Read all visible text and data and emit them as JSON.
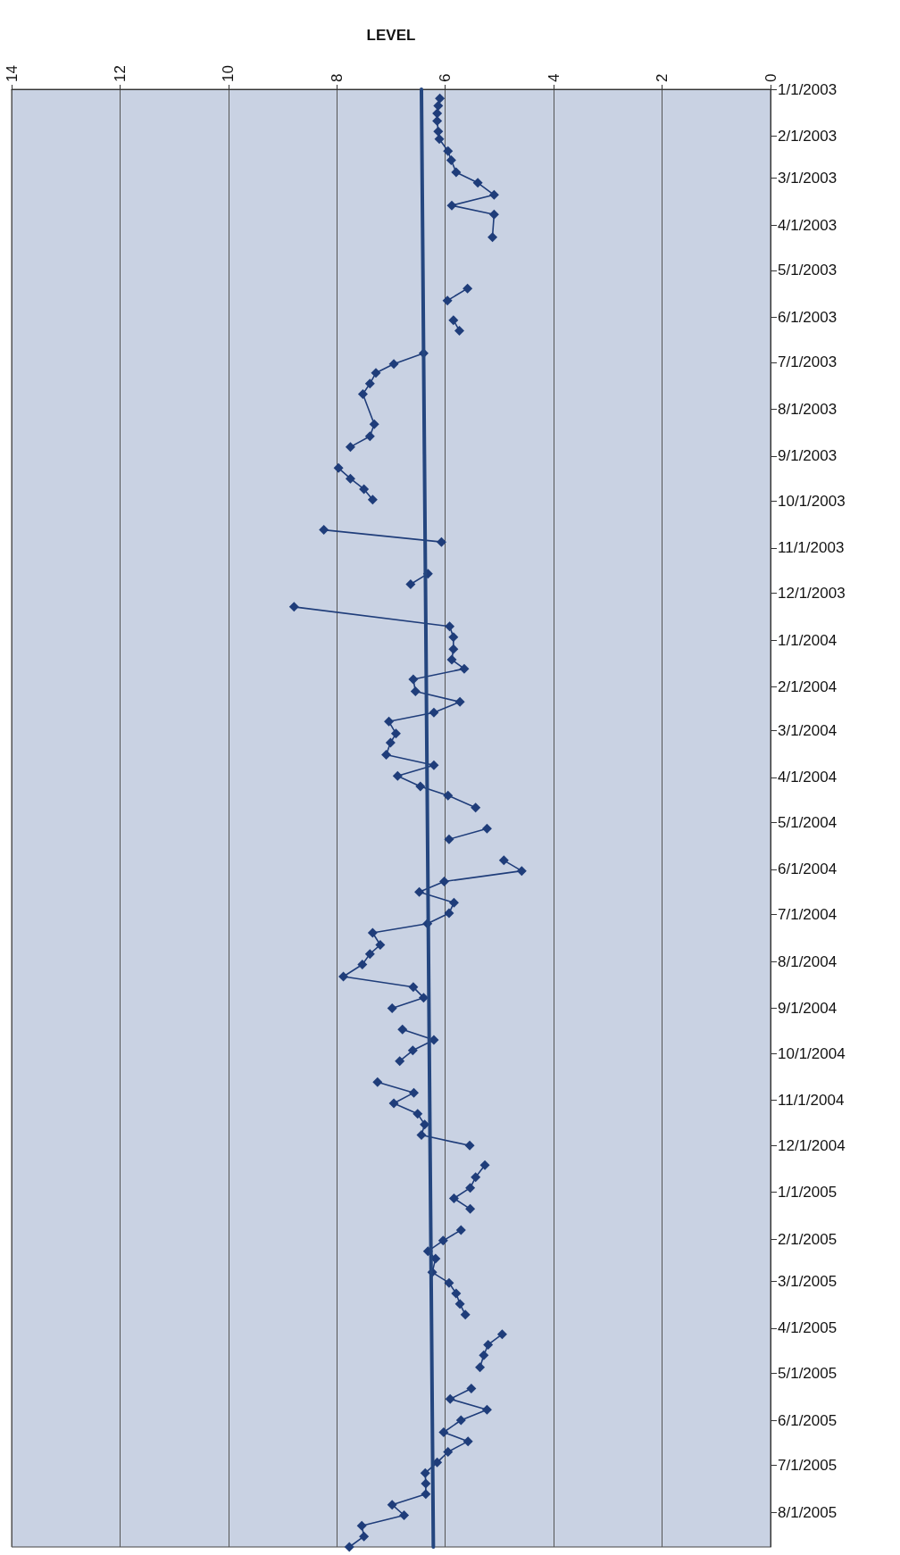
{
  "chart_data": {
    "type": "line",
    "orientation": "horizontal",
    "xlabel": "LEVEL",
    "xlim": [
      14,
      0
    ],
    "xticks": [
      14,
      12,
      10,
      8,
      6,
      4,
      2,
      0
    ],
    "ylim": [
      "2005-08-24",
      "2003-01-01"
    ],
    "yticks": [
      {
        "value": "2003-01-01",
        "label": "1/1/2003"
      },
      {
        "value": "2003-02-01",
        "label": "2/1/2003"
      },
      {
        "value": "2003-03-01",
        "label": "3/1/2003"
      },
      {
        "value": "2003-04-01",
        "label": "4/1/2003"
      },
      {
        "value": "2003-05-01",
        "label": "5/1/2003"
      },
      {
        "value": "2003-06-01",
        "label": "6/1/2003"
      },
      {
        "value": "2003-07-01",
        "label": "7/1/2003"
      },
      {
        "value": "2003-08-01",
        "label": "8/1/2003"
      },
      {
        "value": "2003-09-01",
        "label": "9/1/2003"
      },
      {
        "value": "2003-10-01",
        "label": "10/1/2003"
      },
      {
        "value": "2003-11-01",
        "label": "11/1/2003"
      },
      {
        "value": "2003-12-01",
        "label": "12/1/2003"
      },
      {
        "value": "2004-01-01",
        "label": "1/1/2004"
      },
      {
        "value": "2004-02-01",
        "label": "2/1/2004"
      },
      {
        "value": "2004-03-01",
        "label": "3/1/2004"
      },
      {
        "value": "2004-04-01",
        "label": "4/1/2004"
      },
      {
        "value": "2004-05-01",
        "label": "5/1/2004"
      },
      {
        "value": "2004-06-01",
        "label": "6/1/2004"
      },
      {
        "value": "2004-07-01",
        "label": "7/1/2004"
      },
      {
        "value": "2004-08-01",
        "label": "8/1/2004"
      },
      {
        "value": "2004-09-01",
        "label": "9/1/2004"
      },
      {
        "value": "2004-10-01",
        "label": "10/1/2004"
      },
      {
        "value": "2004-11-01",
        "label": "11/1/2004"
      },
      {
        "value": "2004-12-01",
        "label": "12/1/2004"
      },
      {
        "value": "2005-01-01",
        "label": "1/1/2005"
      },
      {
        "value": "2005-02-01",
        "label": "2/1/2005"
      },
      {
        "value": "2005-03-01",
        "label": "3/1/2005"
      },
      {
        "value": "2005-04-01",
        "label": "4/1/2005"
      },
      {
        "value": "2005-05-01",
        "label": "5/1/2005"
      },
      {
        "value": "2005-06-01",
        "label": "6/1/2005"
      },
      {
        "value": "2005-07-01",
        "label": "7/1/2005"
      },
      {
        "value": "2005-08-01",
        "label": "8/1/2005"
      }
    ],
    "grid": "x",
    "marker": "diamond",
    "line_style": "solid",
    "series": [
      {
        "color": "#1f3d7a",
        "x": [
          "2003-01-07",
          "2003-01-12",
          "2003-01-17",
          "2003-01-22",
          "2003-01-29",
          "2003-02-03",
          "2003-02-11",
          "2003-02-17",
          "2003-02-25",
          "2003-03-04",
          "2003-03-12",
          "2003-03-19",
          "2003-03-25",
          "2003-04-09",
          "2003-04-25",
          "2003-05-13",
          "2003-05-21",
          "2003-05-27",
          "2003-06-03",
          "2003-06-10",
          "2003-06-17",
          "2003-06-25",
          "2003-07-02",
          "2003-07-08",
          "2003-07-15",
          "2003-07-22",
          "2003-08-11",
          "2003-08-19",
          "2003-08-26",
          "2003-09-02",
          "2003-09-09",
          "2003-09-16",
          "2003-09-23",
          "2003-09-30",
          "2003-10-10",
          "2003-10-20",
          "2003-10-28",
          "2003-11-08",
          "2003-11-18",
          "2003-11-25",
          "2003-12-02",
          "2003-12-10",
          "2003-12-23",
          "2003-12-30",
          "2004-01-07",
          "2004-01-14",
          "2004-01-20",
          "2004-01-27",
          "2004-02-04",
          "2004-02-11",
          "2004-02-18",
          "2004-02-24",
          "2004-03-03",
          "2004-03-09",
          "2004-03-17",
          "2004-03-24",
          "2004-03-31",
          "2004-04-07",
          "2004-04-13",
          "2004-04-21",
          "2004-04-28",
          "2004-05-05",
          "2004-05-12",
          "2004-05-19",
          "2004-05-26",
          "2004-06-02",
          "2004-06-09",
          "2004-06-16",
          "2004-06-23",
          "2004-06-30",
          "2004-07-07",
          "2004-07-13",
          "2004-07-21",
          "2004-07-27",
          "2004-08-03",
          "2004-08-11",
          "2004-08-18",
          "2004-08-25",
          "2004-09-01",
          "2004-09-08",
          "2004-09-15",
          "2004-09-22",
          "2004-09-29",
          "2004-10-06",
          "2004-10-13",
          "2004-10-20",
          "2004-10-27",
          "2004-11-03",
          "2004-11-10",
          "2004-11-17",
          "2004-11-24",
          "2004-12-01",
          "2004-12-07",
          "2004-12-14",
          "2004-12-22",
          "2004-12-29",
          "2005-01-05",
          "2005-01-12",
          "2005-01-19",
          "2005-01-26",
          "2005-02-02",
          "2005-02-09",
          "2005-02-14",
          "2005-02-23",
          "2005-03-02",
          "2005-03-09",
          "2005-03-16",
          "2005-03-23",
          "2005-03-30",
          "2005-04-05",
          "2005-04-12",
          "2005-04-19",
          "2005-04-27",
          "2005-05-04",
          "2005-05-11",
          "2005-05-18",
          "2005-05-25",
          "2005-06-01",
          "2005-06-09",
          "2005-06-15",
          "2005-06-22",
          "2005-06-29",
          "2005-07-06",
          "2005-07-13",
          "2005-07-20",
          "2005-07-27",
          "2005-08-03",
          "2005-08-10",
          "2005-08-17",
          "2005-08-24"
        ],
        "values": [
          6.1,
          6.13,
          6.15,
          6.15,
          6.13,
          6.11,
          5.95,
          5.89,
          5.8,
          5.4,
          5.1,
          5.88,
          5.1,
          5.13,
          null,
          5.59,
          5.96,
          null,
          5.85,
          5.74,
          null,
          6.4,
          6.95,
          7.28,
          7.39,
          7.52,
          7.31,
          7.39,
          7.75,
          null,
          7.97,
          7.75,
          7.5,
          7.34,
          null,
          8.24,
          6.07,
          null,
          6.32,
          6.64,
          null,
          8.79,
          5.92,
          5.85,
          5.85,
          5.88,
          5.65,
          6.59,
          6.55,
          5.73,
          6.21,
          7.04,
          6.91,
          7.01,
          7.09,
          6.21,
          6.88,
          6.46,
          5.95,
          5.44,
          null,
          5.23,
          5.93,
          null,
          4.92,
          4.59,
          6.02,
          6.48,
          5.84,
          5.93,
          6.33,
          7.34,
          7.2,
          7.39,
          7.53,
          7.88,
          6.59,
          6.4,
          6.98,
          null,
          6.79,
          6.21,
          6.6,
          6.84,
          null,
          7.25,
          6.58,
          6.95,
          6.51,
          6.38,
          6.44,
          5.55,
          null,
          5.27,
          5.44,
          5.54,
          5.84,
          5.54,
          null,
          5.71,
          6.04,
          6.32,
          6.18,
          6.24,
          5.93,
          5.8,
          5.73,
          5.63,
          null,
          4.95,
          5.21,
          5.29,
          5.36,
          null,
          5.52,
          5.91,
          5.23,
          5.71,
          6.03,
          5.58,
          5.95,
          6.15,
          6.37,
          6.36,
          6.36,
          6.98,
          6.76,
          7.54,
          7.5,
          7.77
        ]
      },
      {
        "color": "#24467f",
        "marker": "none",
        "x": [
          "2003-01-01",
          "2003-06-25",
          "2005-08-24"
        ],
        "values": [
          6.44,
          6.4,
          6.22
        ]
      }
    ]
  }
}
